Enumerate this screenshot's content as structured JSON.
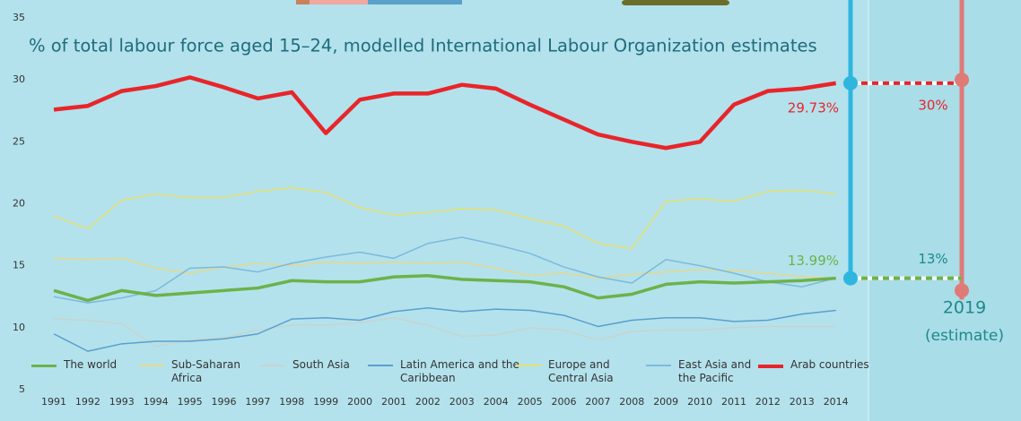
{
  "chart_data": {
    "type": "line",
    "title": "% of total labour force aged 15–24, modelled International Labour Organization estimates",
    "categories": [
      "1991",
      "1992",
      "1993",
      "1994",
      "1995",
      "1996",
      "1997",
      "1998",
      "1999",
      "2000",
      "2001",
      "2002",
      "2003",
      "2004",
      "2005",
      "2006",
      "2007",
      "2008",
      "2009",
      "2010",
      "2011",
      "2012",
      "2013",
      "2014"
    ],
    "ylim": [
      5,
      35
    ],
    "yticks": [
      5,
      10,
      15,
      20,
      25,
      30,
      35
    ],
    "series": [
      {
        "name": "The world",
        "color": "#6cb24a",
        "width": 3.5,
        "values": [
          13.0,
          12.2,
          13.0,
          12.6,
          12.8,
          13.0,
          13.2,
          13.8,
          13.7,
          13.7,
          14.1,
          14.2,
          13.9,
          13.8,
          13.7,
          13.3,
          12.4,
          12.7,
          13.5,
          13.7,
          13.6,
          13.7,
          13.8,
          13.99
        ]
      },
      {
        "name": "Sub-Saharan Africa",
        "color": "#e6d88a",
        "width": 1.5,
        "values": [
          15.6,
          15.5,
          15.6,
          14.8,
          14.4,
          14.9,
          15.2,
          15.0,
          15.3,
          15.2,
          15.3,
          15.2,
          15.3,
          14.8,
          14.2,
          14.4,
          14.0,
          14.3,
          14.5,
          14.7,
          14.6,
          14.4,
          14.1,
          14.0
        ]
      },
      {
        "name": "South Asia",
        "color": "#c8d4cf",
        "width": 1.5,
        "values": [
          10.7,
          10.6,
          10.3,
          8.5,
          9.0,
          9.2,
          9.8,
          10.2,
          10.2,
          10.4,
          10.8,
          10.2,
          9.3,
          9.4,
          10.0,
          9.8,
          9.0,
          9.7,
          9.8,
          9.8,
          10.0,
          10.1,
          10.1,
          10.1
        ]
      },
      {
        "name": "Latin America and the Caribbean",
        "color": "#5a9fcf",
        "width": 1.5,
        "values": [
          9.5,
          8.1,
          8.7,
          8.9,
          8.9,
          9.1,
          9.5,
          10.7,
          10.8,
          10.6,
          11.3,
          11.6,
          11.3,
          11.5,
          11.4,
          11.0,
          10.1,
          10.6,
          10.8,
          10.8,
          10.5,
          10.6,
          11.1,
          11.4
        ]
      },
      {
        "name": "Europe and Central Asia",
        "color": "#e6df6e",
        "width": 1.5,
        "values": [
          19.0,
          18.0,
          20.3,
          20.8,
          20.5,
          20.5,
          21.0,
          21.3,
          20.9,
          19.7,
          19.1,
          19.3,
          19.6,
          19.5,
          18.8,
          18.2,
          16.8,
          16.4,
          20.2,
          20.4,
          20.2,
          21.0,
          21.1,
          20.8
        ]
      },
      {
        "name": "East Asia and the Pacific",
        "color": "#7cb9dd",
        "width": 1.5,
        "values": [
          12.5,
          12.0,
          12.4,
          13.0,
          14.8,
          14.9,
          14.5,
          15.2,
          15.7,
          16.1,
          15.6,
          16.8,
          17.3,
          16.7,
          16.0,
          14.9,
          14.1,
          13.6,
          15.5,
          15.0,
          14.4,
          13.7,
          13.3,
          14.0
        ]
      },
      {
        "name": "Arab countries",
        "color": "#e8252a",
        "width": 4.5,
        "values": [
          27.6,
          27.9,
          29.1,
          29.5,
          30.2,
          29.4,
          28.5,
          29.0,
          25.7,
          28.4,
          28.9,
          28.9,
          29.6,
          29.3,
          28.0,
          26.8,
          25.6,
          25.0,
          24.5,
          25.0,
          28.0,
          29.1,
          29.3,
          29.73
        ]
      }
    ],
    "latest": {
      "values": [
        29.73,
        13.99
      ],
      "value_labels": [
        "29.73%",
        "13.99%"
      ],
      "colors": [
        "#e8252a",
        "#6cb24a"
      ]
    },
    "estimate": {
      "label": "2019",
      "note": "(estimate)",
      "values": [
        30,
        13
      ],
      "value_labels": [
        "30%",
        "13%"
      ]
    }
  }
}
